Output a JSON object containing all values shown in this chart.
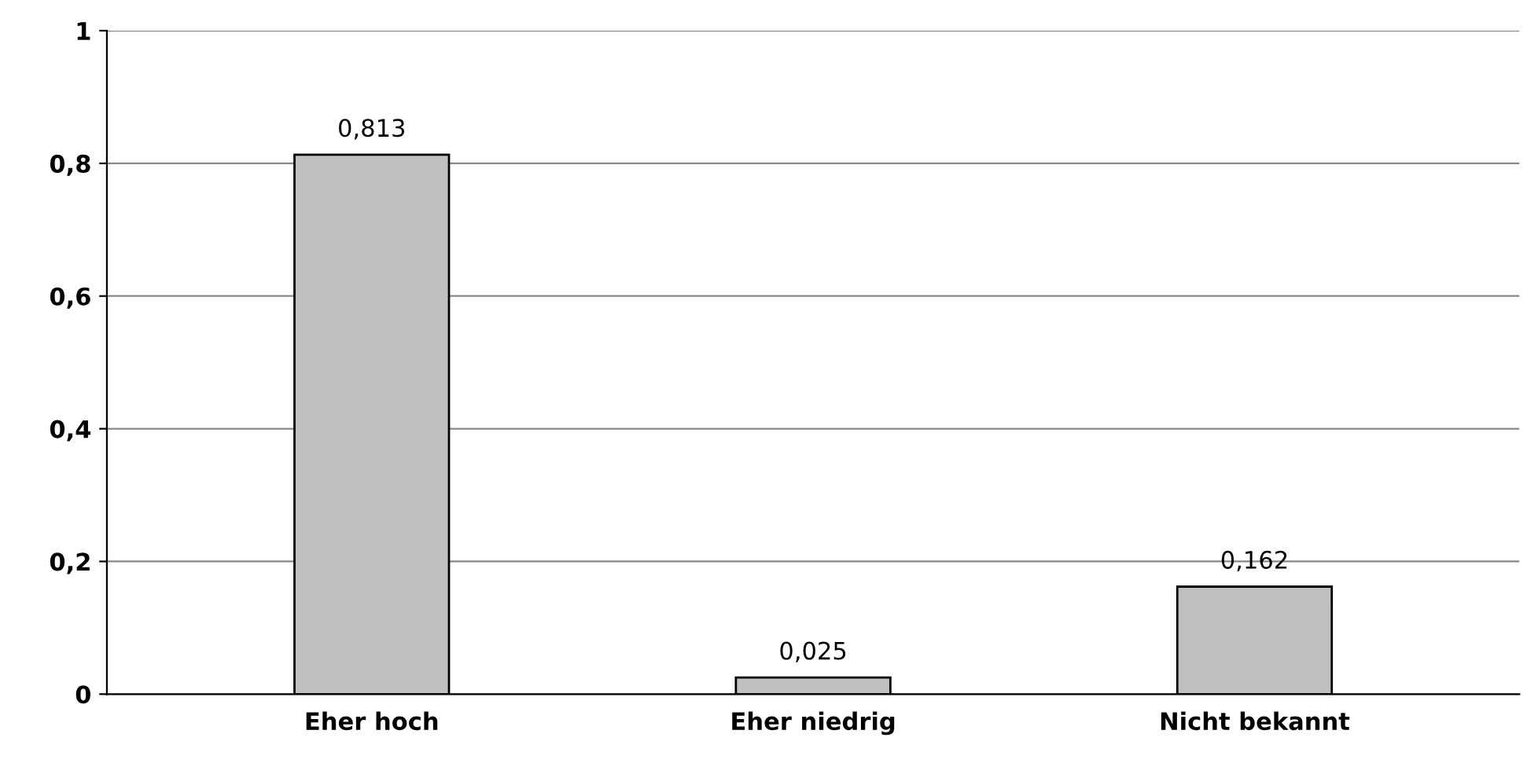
{
  "chart_data": {
    "type": "bar",
    "categories": [
      "Eher hoch",
      "Eher niedrig",
      "Nicht bekannt"
    ],
    "values": [
      0.813,
      0.025,
      0.162
    ],
    "value_labels": [
      "0,813",
      "0,025",
      "0,162"
    ],
    "color": "#c0c0c0",
    "ylim": [
      0,
      1
    ],
    "yticks": [
      {
        "value": 0,
        "label": "0"
      },
      {
        "value": 0.2,
        "label": "0,2"
      },
      {
        "value": 0.4,
        "label": "0,4"
      },
      {
        "value": 0.6,
        "label": "0,6"
      },
      {
        "value": 0.8,
        "label": "0,8"
      },
      {
        "value": 1,
        "label": "1"
      }
    ],
    "grid": "y",
    "legend": false
  }
}
